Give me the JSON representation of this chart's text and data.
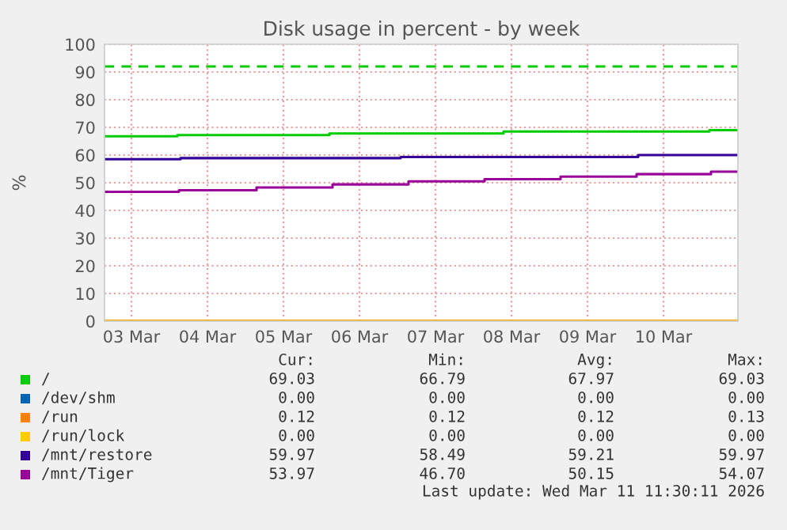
{
  "chart_data": {
    "type": "step",
    "title": "Disk usage in percent - by week",
    "ylabel": "%",
    "xlim": [
      "2026-03-03T03:30",
      "2026-03-11T11:30"
    ],
    "xticks": [
      {
        "value": "2026-03-03T12:00",
        "label": "03 Mar"
      },
      {
        "value": "2026-03-04T12:00",
        "label": "04 Mar"
      },
      {
        "value": "2026-03-05T12:00",
        "label": "05 Mar"
      },
      {
        "value": "2026-03-06T12:00",
        "label": "06 Mar"
      },
      {
        "value": "2026-03-07T12:00",
        "label": "07 Mar"
      },
      {
        "value": "2026-03-08T12:00",
        "label": "08 Mar"
      },
      {
        "value": "2026-03-09T12:00",
        "label": "09 Mar"
      },
      {
        "value": "2026-03-10T12:00",
        "label": "10 Mar"
      }
    ],
    "ylim": [
      0,
      100
    ],
    "yticks": [
      0,
      10,
      20,
      30,
      40,
      50,
      60,
      70,
      80,
      90,
      100
    ],
    "grid": true,
    "legend": "bottom",
    "ref_lines": [
      {
        "axis": "y",
        "value": 92,
        "color": "#00cc00",
        "line_style": "dashed"
      }
    ],
    "series": [
      {
        "name": "/",
        "color": "#00cc00",
        "x": [
          "2026-03-03T03:30",
          "2026-03-04T02:30",
          "2026-03-06T02:30",
          "2026-03-08T09:30",
          "2026-03-11T02:30",
          "2026-03-11T11:30"
        ],
        "values": [
          66.8,
          67.2,
          67.8,
          68.5,
          69.0,
          69.0
        ]
      },
      {
        "name": "/dev/shm",
        "color": "#0066b3"
      },
      {
        "name": "/run",
        "color": "#ff8000",
        "x": [
          "2026-03-03T03:30",
          "2026-03-11T11:30"
        ],
        "values": [
          0.1,
          0.1
        ]
      },
      {
        "name": "/run/lock",
        "color": "#ffcc00",
        "x": [
          "2026-03-03T03:30",
          "2026-03-11T11:30"
        ],
        "values": [
          0,
          0
        ]
      },
      {
        "name": "/mnt/restore",
        "color": "#330099",
        "x": [
          "2026-03-03T03:30",
          "2026-03-04T03:30",
          "2026-03-07T01:00",
          "2026-03-10T04:00",
          "2026-03-11T11:30"
        ],
        "values": [
          58.5,
          58.9,
          59.3,
          60.0,
          60.0
        ]
      },
      {
        "name": "/mnt/Tiger",
        "color": "#990099",
        "x": [
          "2026-03-03T03:30",
          "2026-03-04T03:00",
          "2026-03-05T03:30",
          "2026-03-06T03:30",
          "2026-03-07T03:30",
          "2026-03-08T03:30",
          "2026-03-09T03:30",
          "2026-03-10T03:30",
          "2026-03-11T03:00",
          "2026-03-11T11:30"
        ],
        "values": [
          46.7,
          47.3,
          48.3,
          49.4,
          50.5,
          51.3,
          52.2,
          53.1,
          54.0,
          54.0
        ]
      }
    ],
    "annotations": [
      "Cur:",
      "Min:",
      "Avg:",
      "Max:",
      "69.03",
      "66.79",
      "67.97",
      "69.03",
      "0.00",
      "0.00",
      "0.00",
      "0.00",
      "0.12",
      "0.12",
      "0.12",
      "0.13",
      "0.00",
      "0.00",
      "0.00",
      "0.00",
      "59.97",
      "58.49",
      "59.21",
      "59.97",
      "53.97",
      "46.70",
      "50.15",
      "54.07",
      "Last update: Wed Mar 11 11:30:11 2026"
    ]
  }
}
